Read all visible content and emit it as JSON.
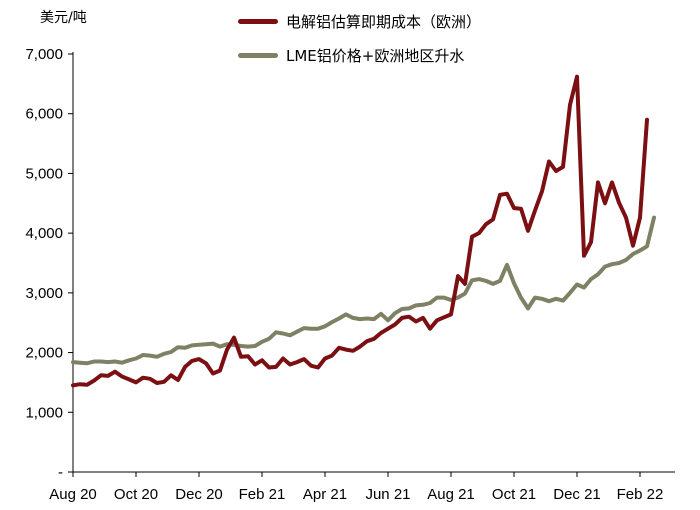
{
  "chart_data": {
    "type": "line",
    "title": "",
    "unit_label": "美元/吨",
    "ylim": [
      0,
      7000
    ],
    "y_ticks": [
      {
        "value": 7000,
        "label": "7,000"
      },
      {
        "value": 6000,
        "label": "6,000"
      },
      {
        "value": 5000,
        "label": "5,000"
      },
      {
        "value": 4000,
        "label": "4,000"
      },
      {
        "value": 3000,
        "label": "3,000"
      },
      {
        "value": 2000,
        "label": "2,000"
      },
      {
        "value": 1000,
        "label": "1,000"
      },
      {
        "value": 0,
        "label": "-"
      }
    ],
    "x_ticks": [
      {
        "index": 0,
        "label": "Aug 20"
      },
      {
        "index": 9,
        "label": "Oct 20"
      },
      {
        "index": 18,
        "label": "Dec 20"
      },
      {
        "index": 27,
        "label": "Feb 21"
      },
      {
        "index": 36,
        "label": "Apr 21"
      },
      {
        "index": 45,
        "label": "Jun 21"
      },
      {
        "index": 54,
        "label": "Aug 21"
      },
      {
        "index": 63,
        "label": "Oct 21"
      },
      {
        "index": 72,
        "label": "Dec 21"
      },
      {
        "index": 81,
        "label": "Feb 22"
      }
    ],
    "n_points": 87,
    "legend_position": "top-center",
    "series": [
      {
        "name": "电解铝估算即期成本（欧洲）",
        "color": "#7B0F12",
        "values": [
          1450,
          1470,
          1460,
          1530,
          1620,
          1610,
          1680,
          1600,
          1550,
          1500,
          1580,
          1560,
          1490,
          1510,
          1620,
          1540,
          1760,
          1860,
          1890,
          1820,
          1650,
          1700,
          2050,
          2250,
          1930,
          1940,
          1800,
          1870,
          1750,
          1760,
          1900,
          1800,
          1840,
          1890,
          1780,
          1750,
          1900,
          1950,
          2080,
          2050,
          2030,
          2100,
          2190,
          2230,
          2330,
          2400,
          2470,
          2580,
          2600,
          2520,
          2580,
          2400,
          2540,
          2590,
          2640,
          3280,
          3150,
          3940,
          4000,
          4150,
          4230,
          4640,
          4660,
          4420,
          4410,
          4040,
          4380,
          4700,
          5200,
          5040,
          5110,
          6150,
          6620,
          3620,
          3850,
          4850,
          4500,
          4850,
          4510,
          4260,
          3790,
          4260,
          5900
        ]
      },
      {
        "name": "LME铝价格+欧洲地区升水",
        "color": "#7F8064",
        "values": [
          1840,
          1830,
          1820,
          1850,
          1850,
          1840,
          1850,
          1830,
          1870,
          1900,
          1960,
          1950,
          1930,
          1980,
          2010,
          2090,
          2080,
          2120,
          2130,
          2140,
          2150,
          2100,
          2140,
          2130,
          2110,
          2100,
          2110,
          2180,
          2230,
          2340,
          2320,
          2290,
          2350,
          2410,
          2400,
          2400,
          2440,
          2510,
          2570,
          2640,
          2580,
          2560,
          2570,
          2560,
          2650,
          2540,
          2660,
          2730,
          2740,
          2790,
          2800,
          2830,
          2920,
          2920,
          2880,
          2920,
          2990,
          3210,
          3230,
          3200,
          3150,
          3200,
          3470,
          3160,
          2920,
          2740,
          2920,
          2900,
          2860,
          2900,
          2870,
          3000,
          3140,
          3090,
          3230,
          3310,
          3440,
          3480,
          3500,
          3550,
          3650,
          3710,
          3780,
          4260
        ]
      }
    ]
  }
}
